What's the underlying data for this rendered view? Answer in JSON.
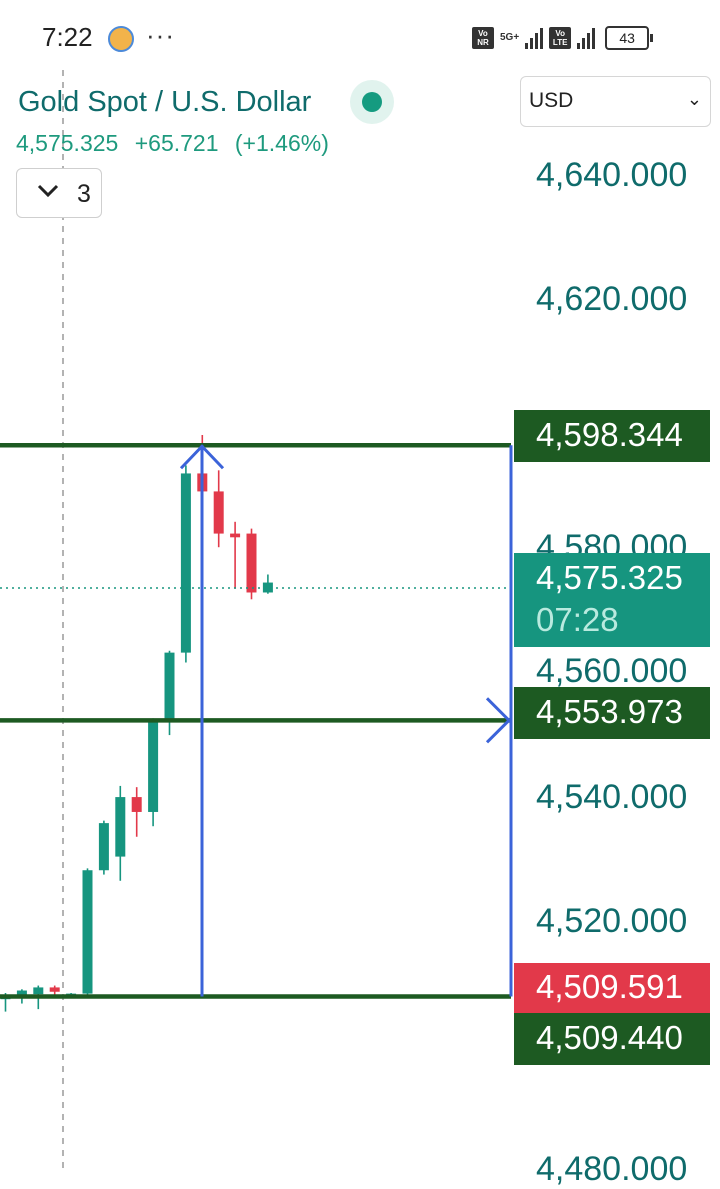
{
  "status_bar": {
    "time": "7:22",
    "more": "···",
    "badge_vonr": "Vo NR",
    "network_5g": "5G+",
    "badge_volte": "Vo LTE",
    "battery": "43"
  },
  "header": {
    "symbol_name": "Gold Spot / U.S. Dollar",
    "last_price": "4,575.325",
    "change": "+65.721",
    "change_pct": "(+1.46%)",
    "interval_value": "3",
    "currency": "USD"
  },
  "colors": {
    "up": "#16957f",
    "down": "#e2394a",
    "level_line": "#1d5a22",
    "drawing": "#3b63d9",
    "axis_text": "#0f6b6b"
  },
  "price_axis": {
    "ticks": [
      "4,640.000",
      "4,620.000",
      "4,580.000",
      "4,560.000",
      "4,540.000",
      "4,520.000",
      "4,480.000"
    ],
    "tag_top": "4,598.344",
    "tag_current": "4,575.325",
    "tag_countdown": "07:28",
    "tag_mid": "4,553.973",
    "tag_low_red": "4,509.591",
    "tag_bottom": "4,509.440"
  },
  "chart_data": {
    "type": "candlestick",
    "ylim": [
      4480,
      4650
    ],
    "ticks": [
      4640,
      4620,
      4580,
      4560,
      4540,
      4520,
      4480
    ],
    "current_price": 4575.325,
    "horizontal_levels": [
      4598.344,
      4553.973,
      4509.44
    ],
    "candles": [
      {
        "o": 4509.0,
        "h": 4510.0,
        "l": 4507.0,
        "c": 4509.6
      },
      {
        "o": 4509.3,
        "h": 4510.6,
        "l": 4508.3,
        "c": 4510.4
      },
      {
        "o": 4509.8,
        "h": 4511.2,
        "l": 4507.4,
        "c": 4510.9
      },
      {
        "o": 4510.9,
        "h": 4511.2,
        "l": 4509.5,
        "c": 4510.2
      },
      {
        "o": 4509.6,
        "h": 4510.0,
        "l": 4509.3,
        "c": 4509.9
      },
      {
        "o": 4509.9,
        "h": 4530.1,
        "l": 4509.4,
        "c": 4529.8
      },
      {
        "o": 4529.8,
        "h": 4537.8,
        "l": 4529.1,
        "c": 4537.4
      },
      {
        "o": 4532.0,
        "h": 4543.4,
        "l": 4528.1,
        "c": 4541.6
      },
      {
        "o": 4541.6,
        "h": 4543.2,
        "l": 4535.2,
        "c": 4539.2
      },
      {
        "o": 4539.2,
        "h": 4554.3,
        "l": 4536.9,
        "c": 4554.0
      },
      {
        "o": 4554.0,
        "h": 4565.2,
        "l": 4551.6,
        "c": 4564.9
      },
      {
        "o": 4564.9,
        "h": 4595.1,
        "l": 4563.3,
        "c": 4593.8
      },
      {
        "o": 4593.8,
        "h": 4600.0,
        "l": 4588.5,
        "c": 4590.9
      },
      {
        "o": 4590.9,
        "h": 4594.3,
        "l": 4581.9,
        "c": 4584.1
      },
      {
        "o": 4584.1,
        "h": 4586.0,
        "l": 4575.2,
        "c": 4583.5
      },
      {
        "o": 4584.1,
        "h": 4584.9,
        "l": 4573.5,
        "c": 4574.6
      },
      {
        "o": 4574.6,
        "h": 4577.5,
        "l": 4574.4,
        "c": 4576.2
      }
    ]
  }
}
